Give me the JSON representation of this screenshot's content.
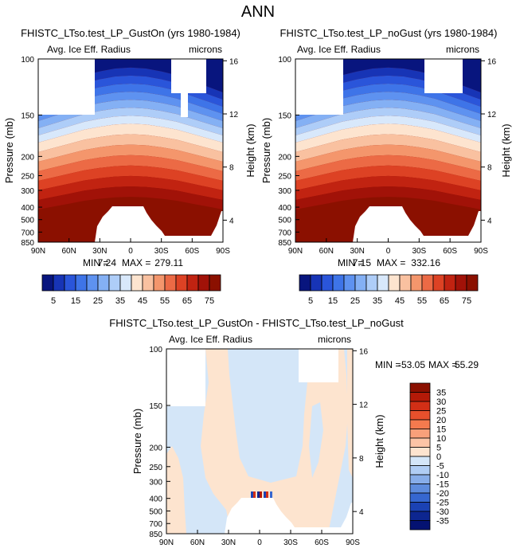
{
  "page_title": "ANN",
  "colors": {
    "fill_max": "#8b1000",
    "diff_neg_light": "#d4e6f8",
    "diff_pos_light": "#fde4cf"
  },
  "chart_data": [
    {
      "type": "heatmap",
      "title": "FHISTC_LTso.test_LP_GustOn (yrs 1980-1984)",
      "left_string": "Avg. Ice Eff. Radius",
      "right_string": "microns",
      "ylabel": "Pressure (mb)",
      "y2label": "Height (km)",
      "yticks": [
        "100",
        "150",
        "200",
        "250",
        "300",
        "400",
        "500",
        "700",
        "850"
      ],
      "y2ticks": [
        "16",
        "12",
        "8",
        "4"
      ],
      "xticks": [
        "90N",
        "60N",
        "30N",
        "0",
        "30S",
        "60S",
        "90S"
      ],
      "min_label": "MIN =",
      "min_value": "7.24",
      "max_label": "MAX =",
      "max_value": "279.11",
      "colorbar": {
        "labels": [
          "5",
          "15",
          "25",
          "35",
          "45",
          "55",
          "65",
          "75"
        ],
        "colors": [
          "#08157e",
          "#1734b6",
          "#2a55da",
          "#3e74e8",
          "#5e92f0",
          "#84b0f4",
          "#aecdf8",
          "#d8e8fb",
          "#fde4cf",
          "#f9c1a0",
          "#f4966c",
          "#ec6a45",
          "#dd4224",
          "#c12311",
          "#a11208",
          "#8b1000"
        ]
      }
    },
    {
      "type": "heatmap",
      "title": "FHISTC_LTso.test_LP_noGust (yrs 1980-1984)",
      "left_string": "Avg. Ice Eff. Radius",
      "right_string": "microns",
      "ylabel": "Pressure (mb)",
      "y2label": "Height (km)",
      "yticks": [
        "100",
        "150",
        "200",
        "250",
        "300",
        "400",
        "500",
        "700",
        "850"
      ],
      "y2ticks": [
        "16",
        "12",
        "8",
        "4"
      ],
      "xticks": [
        "90N",
        "60N",
        "30N",
        "0",
        "30S",
        "60S",
        "90S"
      ],
      "min_label": "MIN =",
      "min_value": "7.15",
      "max_label": "MAX =",
      "max_value": "332.16",
      "colorbar": {
        "labels": [
          "5",
          "15",
          "25",
          "35",
          "45",
          "55",
          "65",
          "75"
        ],
        "colors": [
          "#08157e",
          "#1734b6",
          "#2a55da",
          "#3e74e8",
          "#5e92f0",
          "#84b0f4",
          "#aecdf8",
          "#d8e8fb",
          "#fde4cf",
          "#f9c1a0",
          "#f4966c",
          "#ec6a45",
          "#dd4224",
          "#c12311",
          "#a11208",
          "#8b1000"
        ]
      }
    },
    {
      "type": "heatmap",
      "title": "FHISTC_LTso.test_LP_GustOn - FHISTC_LTso.test_LP_noGust",
      "left_string": "Avg. Ice Eff. Radius",
      "right_string": "microns",
      "ylabel": "Pressure (mb)",
      "y2label": "Height (km)",
      "yticks": [
        "100",
        "150",
        "200",
        "250",
        "300",
        "400",
        "500",
        "700",
        "850"
      ],
      "y2ticks": [
        "16",
        "12",
        "8",
        "4"
      ],
      "xticks": [
        "90N",
        "60N",
        "30N",
        "0",
        "30S",
        "60S",
        "90S"
      ],
      "min_label": "MIN =",
      "min_value": "-53.05",
      "max_label": "MAX =",
      "max_value": "55.29",
      "colorbar": {
        "labels": [
          "35",
          "30",
          "25",
          "20",
          "15",
          "10",
          "5",
          "0",
          "-5",
          "-10",
          "-15",
          "-20",
          "-25",
          "-30",
          "-35"
        ],
        "colors": [
          "#8b1000",
          "#b41a08",
          "#d22f16",
          "#e8502c",
          "#f47a4e",
          "#f9a07a",
          "#fcc4a6",
          "#fde4cf",
          "#d4e6f8",
          "#b0cdf4",
          "#87ade9",
          "#5e8cdd",
          "#3667d0",
          "#1b42b4",
          "#0d2690",
          "#041272"
        ]
      }
    }
  ]
}
